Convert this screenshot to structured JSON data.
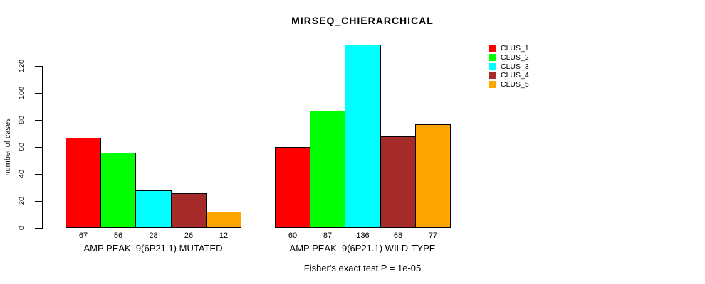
{
  "title": "MIRSEQ_CHIERARCHICAL",
  "chart_data": {
    "type": "bar",
    "title": "MIRSEQ_CHIERARCHICAL",
    "y_axis": {
      "label": "number of cases",
      "ticks": [
        0,
        20,
        40,
        60,
        80,
        100,
        120
      ],
      "range": [
        0,
        136
      ]
    },
    "series": [
      {
        "name": "CLUS_1",
        "color": "#FF0000"
      },
      {
        "name": "CLUS_2",
        "color": "#00FF00"
      },
      {
        "name": "CLUS_3",
        "color": "#00FFFF"
      },
      {
        "name": "CLUS_4",
        "color": "#A52A2A"
      },
      {
        "name": "CLUS_5",
        "color": "#FFA500"
      }
    ],
    "groups": [
      {
        "label": "AMP PEAK  9(6P21.1) MUTATED",
        "values": [
          67,
          56,
          28,
          26,
          12
        ]
      },
      {
        "label": "AMP PEAK  9(6P21.1) WILD-TYPE",
        "values": [
          60,
          87,
          136,
          68,
          77
        ]
      }
    ],
    "bar_value_labels_shown": true,
    "annotation": "Fisher's exact test P = 1e-05",
    "legend_position": "top-right",
    "grid": false,
    "background": "#ffffff",
    "axis_color": "#000000"
  }
}
